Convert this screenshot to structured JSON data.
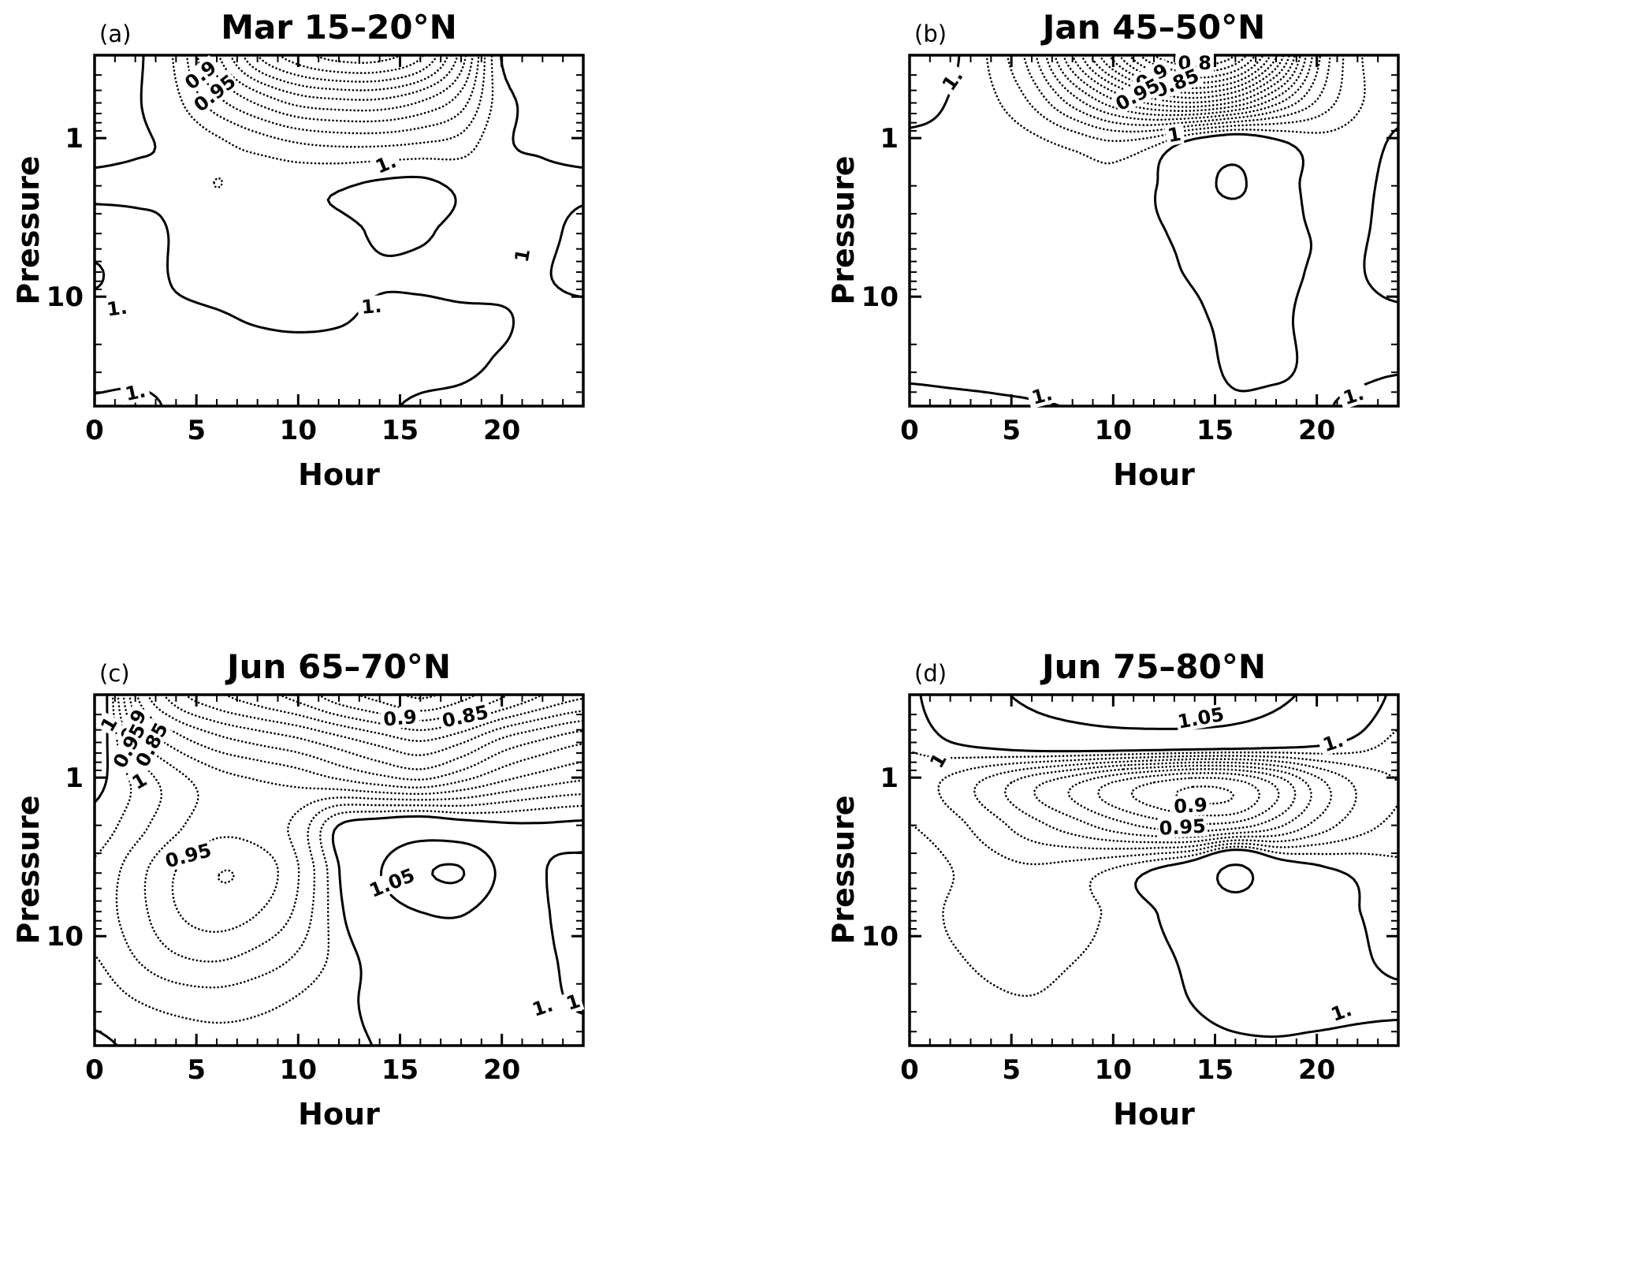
{
  "figure": {
    "background": "#ffffff",
    "ink": "#000000"
  },
  "chart_data": {
    "type": "heatmap",
    "subtype": "contour",
    "description": "Four-panel diurnal ratio contour plots; dotted contours are values below 1, solid contours are values of 1 and above",
    "x": {
      "label": "Hour",
      "range": [
        0,
        24
      ],
      "major_ticks": [
        0,
        5,
        10,
        15,
        20
      ],
      "minor_step": 1
    },
    "y": {
      "label": "Pressure",
      "scale": "log",
      "range": [
        0.3,
        49
      ],
      "major_ticks": [
        1,
        10
      ],
      "minor_ticks": [
        0.4,
        0.5,
        0.6,
        0.7,
        0.8,
        0.9,
        2,
        3,
        4,
        5,
        6,
        7,
        8,
        9,
        20,
        30,
        40
      ]
    },
    "levels": {
      "dotted": [
        0.7875,
        0.8,
        0.8125,
        0.825,
        0.8375,
        0.85,
        0.8625,
        0.875,
        0.8875,
        0.9,
        0.9125,
        0.925,
        0.9375,
        0.95,
        0.9625,
        0.975,
        0.9875
      ],
      "solid": [
        1.0,
        1.05,
        1.1
      ]
    },
    "grid_hours": [
      0,
      2,
      4,
      6,
      8,
      10,
      12,
      14,
      16,
      18,
      20,
      22,
      24
    ],
    "grid_pressures": [
      0.3,
      0.566,
      1.071,
      2.026,
      3.833,
      7.25,
      13.71,
      25.94,
      49.0
    ],
    "panels": [
      {
        "tag": "(a)",
        "title": "Mar 15–20°N",
        "values": [
          [
            1.004,
            1.002,
            0.985,
            0.94,
            0.9,
            0.88,
            0.87,
            0.87,
            0.885,
            0.93,
            1.001,
            1.003,
            1.004
          ],
          [
            1.003,
            1.001,
            0.99,
            0.965,
            0.945,
            0.93,
            0.925,
            0.925,
            0.935,
            0.955,
            0.995,
            1.002,
            1.003
          ],
          [
            1.002,
            1.001,
            0.998,
            0.99,
            0.982,
            0.975,
            0.972,
            0.972,
            0.975,
            0.98,
            0.998,
            1.001,
            1.002
          ],
          [
            0.999,
            0.9985,
            0.998,
            0.9874,
            0.996,
            0.997,
            0.999,
            1.003,
            1.004,
            0.998,
            0.997,
            0.998,
            0.999
          ],
          [
            1.002,
            1.002,
            0.9995,
            0.998,
            0.997,
            0.997,
            0.998,
            1.001,
            1.001,
            0.998,
            0.997,
            0.998,
            1.002
          ],
          [
            0.9995,
            1.002,
            0.9995,
            0.998,
            0.997,
            0.997,
            0.998,
            0.9995,
            0.999,
            0.998,
            0.998,
            0.9995,
            1.002
          ],
          [
            1.002,
            1.001,
            1.001,
            1.0005,
            0.9995,
            0.999,
            0.9995,
            1.001,
            1.0015,
            1.001,
            1.0005,
            0.9985,
            0.998
          ],
          [
            1.003,
            1.003,
            1.0025,
            1.002,
            1.002,
            1.002,
            1.002,
            1.002,
            1.0015,
            1.001,
            0.9995,
            0.998,
            0.997
          ],
          [
            0.999,
            0.998,
            1.001,
            1.0015,
            1.002,
            1.0015,
            1.001,
            1.0005,
            0.9995,
            0.999,
            0.998,
            0.997,
            0.996
          ]
        ],
        "labels": [
          {
            "text": "0.9",
            "hour": 5.2,
            "pressure": 0.4,
            "rot": -38
          },
          {
            "text": "0.95",
            "hour": 5.9,
            "pressure": 0.52,
            "rot": -38
          },
          {
            "text": "1.",
            "hour": 14.3,
            "pressure": 1.45,
            "rot": -22
          },
          {
            "text": "1",
            "hour": 21.0,
            "pressure": 5.5,
            "rot": -80
          },
          {
            "text": "1.",
            "hour": 1.1,
            "pressure": 11.8,
            "rot": -8
          },
          {
            "text": "1.",
            "hour": 13.6,
            "pressure": 11.5,
            "rot": -5
          },
          {
            "text": "1.",
            "hour": 2.0,
            "pressure": 40,
            "rot": -12
          }
        ]
      },
      {
        "tag": "(b)",
        "title": "Jan 45–50°N",
        "values": [
          [
            1.01,
            1.003,
            0.985,
            0.955,
            0.9,
            0.845,
            0.8,
            0.785,
            0.8,
            0.86,
            0.945,
            0.985,
            0.995
          ],
          [
            1.004,
            0.9995,
            0.99,
            0.972,
            0.942,
            0.912,
            0.888,
            0.878,
            0.893,
            0.928,
            0.962,
            0.985,
            0.996
          ],
          [
            0.9985,
            0.998,
            0.996,
            0.991,
            0.984,
            0.977,
            0.984,
            1.008,
            1.02,
            1.004,
            0.993,
            0.994,
            1.002
          ],
          [
            0.998,
            0.9975,
            0.997,
            0.9955,
            0.9935,
            0.9915,
            0.9985,
            1.03,
            1.058,
            1.012,
            0.996,
            0.997,
            1.004
          ],
          [
            0.9975,
            0.997,
            0.9965,
            0.996,
            0.995,
            0.9955,
            0.998,
            1.006,
            1.01,
            1.003,
            0.9995,
            0.999,
            1.003
          ],
          [
            0.997,
            0.9965,
            0.996,
            0.9955,
            0.995,
            0.995,
            0.997,
            1.001,
            1.003,
            1.0015,
            0.9995,
            0.9995,
            1.003
          ],
          [
            0.997,
            0.9965,
            0.996,
            0.996,
            0.9955,
            0.995,
            0.996,
            0.999,
            1.0015,
            1.001,
            0.9985,
            0.998,
            0.9985
          ],
          [
            0.998,
            0.9975,
            0.997,
            0.996,
            0.995,
            0.9945,
            0.995,
            0.998,
            1.001,
            1.001,
            0.999,
            0.9985,
            0.999
          ],
          [
            1.002,
            1.0015,
            1.001,
            1.0005,
            0.9995,
            0.996,
            0.997,
            0.9985,
            0.9995,
            0.999,
            0.9995,
            1.001,
            1.003
          ]
        ],
        "labels": [
          {
            "text": "0.8",
            "hour": 14.0,
            "pressure": 0.335,
            "rot": 0
          },
          {
            "text": "0.9",
            "hour": 11.9,
            "pressure": 0.41,
            "rot": -30
          },
          {
            "text": "0.85",
            "hour": 13.1,
            "pressure": 0.45,
            "rot": -22
          },
          {
            "text": "0.95",
            "hour": 11.2,
            "pressure": 0.53,
            "rot": -28
          },
          {
            "text": "1.",
            "hour": 2.1,
            "pressure": 0.43,
            "rot": -55
          },
          {
            "text": "1",
            "hour": 13.0,
            "pressure": 0.95,
            "rot": -10
          },
          {
            "text": "1.",
            "hour": 6.5,
            "pressure": 42,
            "rot": -15
          },
          {
            "text": "1.",
            "hour": 21.8,
            "pressure": 42,
            "rot": -18
          }
        ]
      },
      {
        "tag": "(c)",
        "title": "Jun 65–70°N",
        "values": [
          [
            1.02,
            0.94,
            0.905,
            0.89,
            0.88,
            0.87,
            0.855,
            0.845,
            0.835,
            0.845,
            0.86,
            0.875,
            0.885
          ],
          [
            1.012,
            0.965,
            0.942,
            0.928,
            0.92,
            0.913,
            0.903,
            0.893,
            0.885,
            0.895,
            0.913,
            0.924,
            0.933
          ],
          [
            1.004,
            0.985,
            0.968,
            0.956,
            0.951,
            0.947,
            0.941,
            0.934,
            0.929,
            0.939,
            0.951,
            0.959,
            0.964
          ],
          [
            0.995,
            0.98,
            0.965,
            0.954,
            0.956,
            0.967,
            1.001,
            1.012,
            1.02,
            1.012,
            1.004,
            1.002,
            1.003
          ],
          [
            0.985,
            0.968,
            0.95,
            0.938,
            0.942,
            0.962,
            0.9995,
            1.048,
            1.092,
            1.102,
            1.04,
            1.002,
            0.995
          ],
          [
            0.982,
            0.968,
            0.951,
            0.944,
            0.95,
            0.966,
            0.996,
            1.028,
            1.048,
            1.052,
            1.022,
            1.002,
            0.996
          ],
          [
            0.988,
            0.975,
            0.964,
            0.961,
            0.967,
            0.977,
            0.992,
            1.008,
            1.018,
            1.02,
            1.012,
            1.002,
            0.998
          ],
          [
            0.995,
            0.988,
            0.983,
            0.981,
            0.984,
            0.989,
            0.996,
            1.004,
            1.008,
            1.009,
            1.006,
            1.002,
            0.999
          ],
          [
            1.002,
            0.998,
            0.994,
            0.992,
            0.992,
            0.994,
            0.997,
            1.0005,
            1.0015,
            1.002,
            1.0025,
            1.003,
            1.003
          ]
        ],
        "labels": [
          {
            "text": "1",
            "hour": 0.7,
            "pressure": 0.46,
            "rot": -60
          },
          {
            "text": "0.9",
            "hour": 1.9,
            "pressure": 0.47,
            "rot": -62
          },
          {
            "text": "0.95",
            "hour": 1.7,
            "pressure": 0.63,
            "rot": -62
          },
          {
            "text": "0.85",
            "hour": 2.8,
            "pressure": 0.62,
            "rot": -62
          },
          {
            "text": "1",
            "hour": 2.2,
            "pressure": 1.05,
            "rot": -30
          },
          {
            "text": "0.9",
            "hour": 15.0,
            "pressure": 0.42,
            "rot": -5
          },
          {
            "text": "0.85",
            "hour": 18.2,
            "pressure": 0.41,
            "rot": -12
          },
          {
            "text": "0.95",
            "hour": 4.6,
            "pressure": 3.1,
            "rot": -15
          },
          {
            "text": "1.05",
            "hour": 14.6,
            "pressure": 4.6,
            "rot": -22
          },
          {
            "text": "1.",
            "hour": 22.0,
            "pressure": 28,
            "rot": -18
          },
          {
            "text": "1",
            "hour": 23.5,
            "pressure": 26,
            "rot": -18
          }
        ]
      },
      {
        "tag": "(d)",
        "title": "Jun 75–80°N",
        "values": [
          [
            0.995,
            1.02,
            1.042,
            1.058,
            1.07,
            1.078,
            1.08,
            1.078,
            1.07,
            1.058,
            1.04,
            1.015,
            0.996
          ],
          [
            0.99,
            1.002,
            1.012,
            1.022,
            1.028,
            1.032,
            1.033,
            1.032,
            1.028,
            1.02,
            1.01,
            0.998,
            0.985
          ],
          [
            0.982,
            0.972,
            0.958,
            0.942,
            0.928,
            0.912,
            0.9,
            0.892,
            0.896,
            0.916,
            0.945,
            0.965,
            0.975
          ],
          [
            0.988,
            0.98,
            0.968,
            0.955,
            0.944,
            0.932,
            0.922,
            0.916,
            0.92,
            0.935,
            0.955,
            0.97,
            0.978
          ],
          [
            0.996,
            0.988,
            0.98,
            0.977,
            0.981,
            0.989,
            1.001,
            1.018,
            1.06,
            1.018,
            1.004,
            0.997,
            0.991
          ],
          [
            0.994,
            0.986,
            0.979,
            0.977,
            0.982,
            0.99,
            0.999,
            1.012,
            1.022,
            1.016,
            1.007,
            1.0005,
            0.995
          ],
          [
            0.994,
            0.989,
            0.985,
            0.984,
            0.987,
            0.991,
            0.996,
            1.004,
            1.012,
            1.012,
            1.007,
            1.002,
            0.997
          ],
          [
            0.995,
            0.992,
            0.989,
            0.988,
            0.99,
            0.993,
            0.996,
            1.0005,
            1.005,
            1.006,
            1.005,
            1.003,
            1.002
          ],
          [
            0.996,
            0.994,
            0.992,
            0.991,
            0.991,
            0.993,
            0.995,
            0.997,
            0.9985,
            0.999,
            0.998,
            0.997,
            0.996
          ]
        ],
        "labels": [
          {
            "text": "1.05",
            "hour": 14.3,
            "pressure": 0.42,
            "rot": -10
          },
          {
            "text": "1.",
            "hour": 20.8,
            "pressure": 0.6,
            "rot": -18
          },
          {
            "text": "1",
            "hour": 1.4,
            "pressure": 0.78,
            "rot": -60
          },
          {
            "text": "0.9",
            "hour": 13.8,
            "pressure": 1.5,
            "rot": -3
          },
          {
            "text": "0.95",
            "hour": 13.4,
            "pressure": 2.05,
            "rot": -3
          },
          {
            "text": "1.",
            "hour": 21.2,
            "pressure": 30,
            "rot": -20
          }
        ]
      }
    ]
  }
}
